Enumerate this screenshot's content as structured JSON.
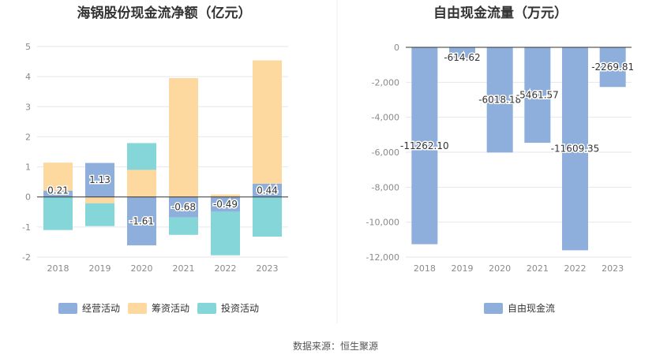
{
  "chart_data": [
    {
      "type": "bar",
      "stacked": true,
      "title": "海锅股份现金流净额（亿元）",
      "categories": [
        "2018",
        "2019",
        "2020",
        "2021",
        "2022",
        "2023"
      ],
      "ylim": [
        -2,
        5
      ],
      "yticks": [
        "5",
        "4",
        "3",
        "2",
        "1",
        "0",
        "-1",
        "-2"
      ],
      "series": [
        {
          "name": "经营活动",
          "color": "#8eaedc",
          "values": [
            0.21,
            1.13,
            -1.61,
            -0.68,
            -0.49,
            0.44
          ]
        },
        {
          "name": "筹资活动",
          "color": "#fdd9a0",
          "values": [
            0.93,
            -0.21,
            0.9,
            3.95,
            0.08,
            4.1
          ]
        },
        {
          "name": "投资活动",
          "color": "#84d6d9",
          "values": [
            -1.1,
            -0.76,
            0.89,
            -0.58,
            -1.45,
            -1.32
          ]
        }
      ],
      "data_labels": [
        "0.21",
        "1.13",
        "-1.61",
        "-0.68",
        "-0.49",
        "0.44"
      ],
      "legend_position": "bottom",
      "grid": true
    },
    {
      "type": "bar",
      "title": "自由现金流量（万元）",
      "categories": [
        "2018",
        "2019",
        "2020",
        "2021",
        "2022",
        "2023"
      ],
      "ylim": [
        -12000,
        0
      ],
      "yticks": [
        "0",
        "-2,000",
        "-4,000",
        "-6,000",
        "-8,000",
        "-10,000",
        "-12,000"
      ],
      "series": [
        {
          "name": "自由现金流",
          "color": "#8eaedc",
          "values": [
            -11262.1,
            -614.62,
            -6018.18,
            -5461.57,
            -11609.35,
            -2269.81
          ]
        }
      ],
      "data_labels": [
        "-11262.10",
        "-614.62",
        "-6018.18",
        "-5461.57",
        "-11609.35",
        "-2269.81"
      ],
      "legend_position": "bottom",
      "grid": true
    }
  ],
  "footer": {
    "source": "数据来源：恒生聚源"
  }
}
